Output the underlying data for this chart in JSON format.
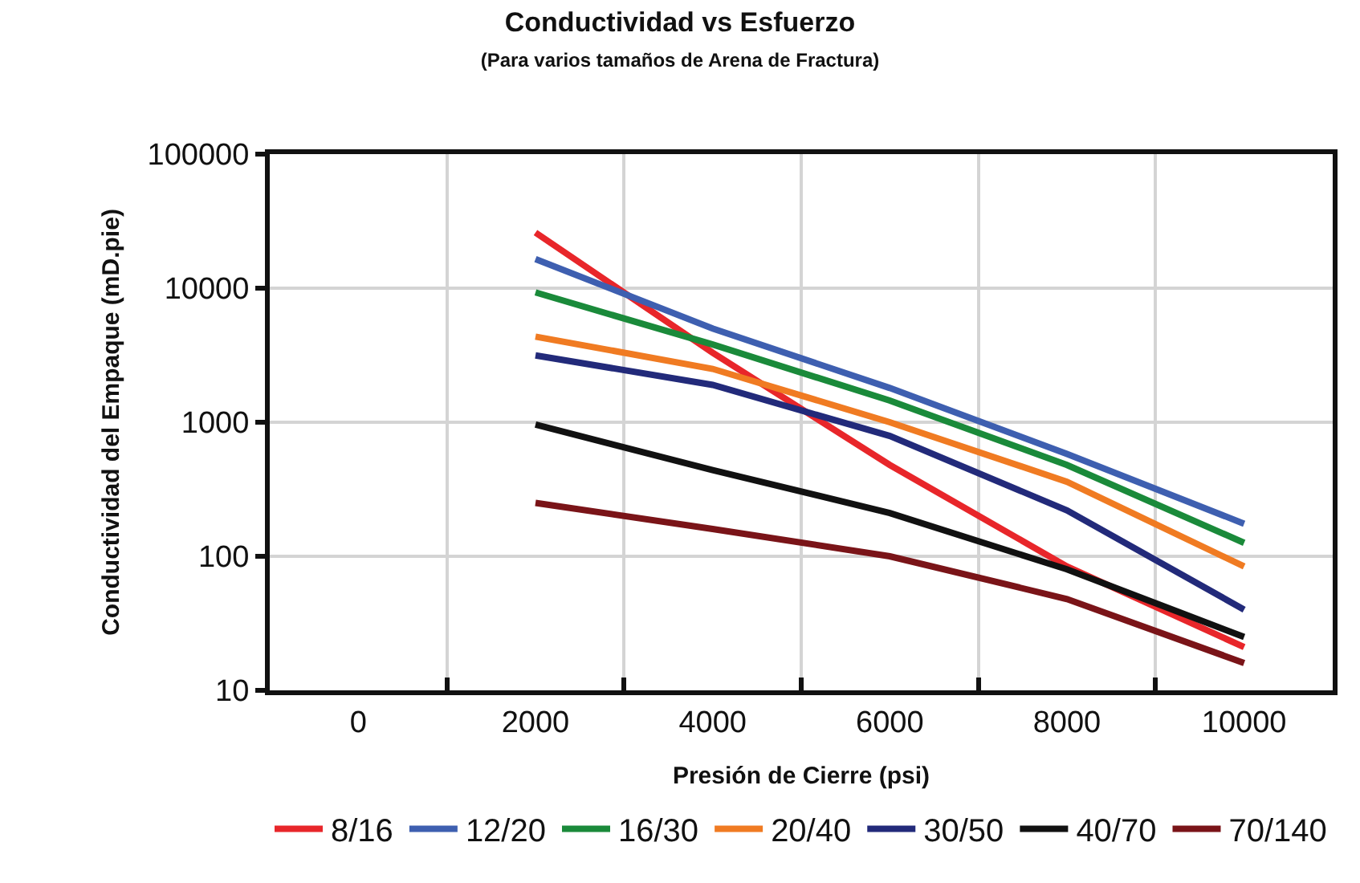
{
  "chart_data": {
    "type": "line",
    "title": "Conductividad vs Esfuerzo",
    "subtitle": "(Para varios tamaños de Arena de Fractura)",
    "xlabel": "Presión de Cierre (psi)",
    "ylabel": "Conductividad del Empaque (mD.pie)",
    "x": [
      2000,
      4000,
      6000,
      8000,
      10000
    ],
    "xlim": [
      -1000,
      11000
    ],
    "xticks": [
      0,
      {
        "value": 1000,
        "label": null
      },
      2000,
      {
        "value": 3000,
        "label": null
      },
      4000,
      {
        "value": 5000,
        "label": null
      },
      6000,
      {
        "value": 7000,
        "label": null
      },
      8000,
      {
        "value": 9000,
        "label": null
      },
      10000
    ],
    "ylim": [
      10,
      100000
    ],
    "yticks": [
      10,
      100,
      1000,
      10000,
      100000
    ],
    "log": "y",
    "grid": true,
    "legend": "bottom",
    "marker": "none",
    "line_style": "solid",
    "series": [
      {
        "name": "8/16",
        "color": "#e8262a",
        "values": [
          26000,
          3300,
          480,
          84,
          21
        ]
      },
      {
        "name": "12/20",
        "color": "#3e5fb0",
        "values": [
          16500,
          5000,
          1800,
          580,
          175
        ]
      },
      {
        "name": "16/30",
        "color": "#1a8a3a",
        "values": [
          9300,
          3800,
          1450,
          480,
          126
        ]
      },
      {
        "name": "20/40",
        "color": "#f07b22",
        "values": [
          4350,
          2500,
          1000,
          360,
          84
        ]
      },
      {
        "name": "30/50",
        "color": "#222a7a",
        "values": [
          3150,
          1900,
          790,
          220,
          40
        ]
      },
      {
        "name": "40/70",
        "color": "#111111",
        "values": [
          960,
          440,
          210,
          80,
          25
        ]
      },
      {
        "name": "70/140",
        "color": "#7a1418",
        "values": [
          250,
          160,
          100,
          48,
          16
        ]
      }
    ]
  }
}
